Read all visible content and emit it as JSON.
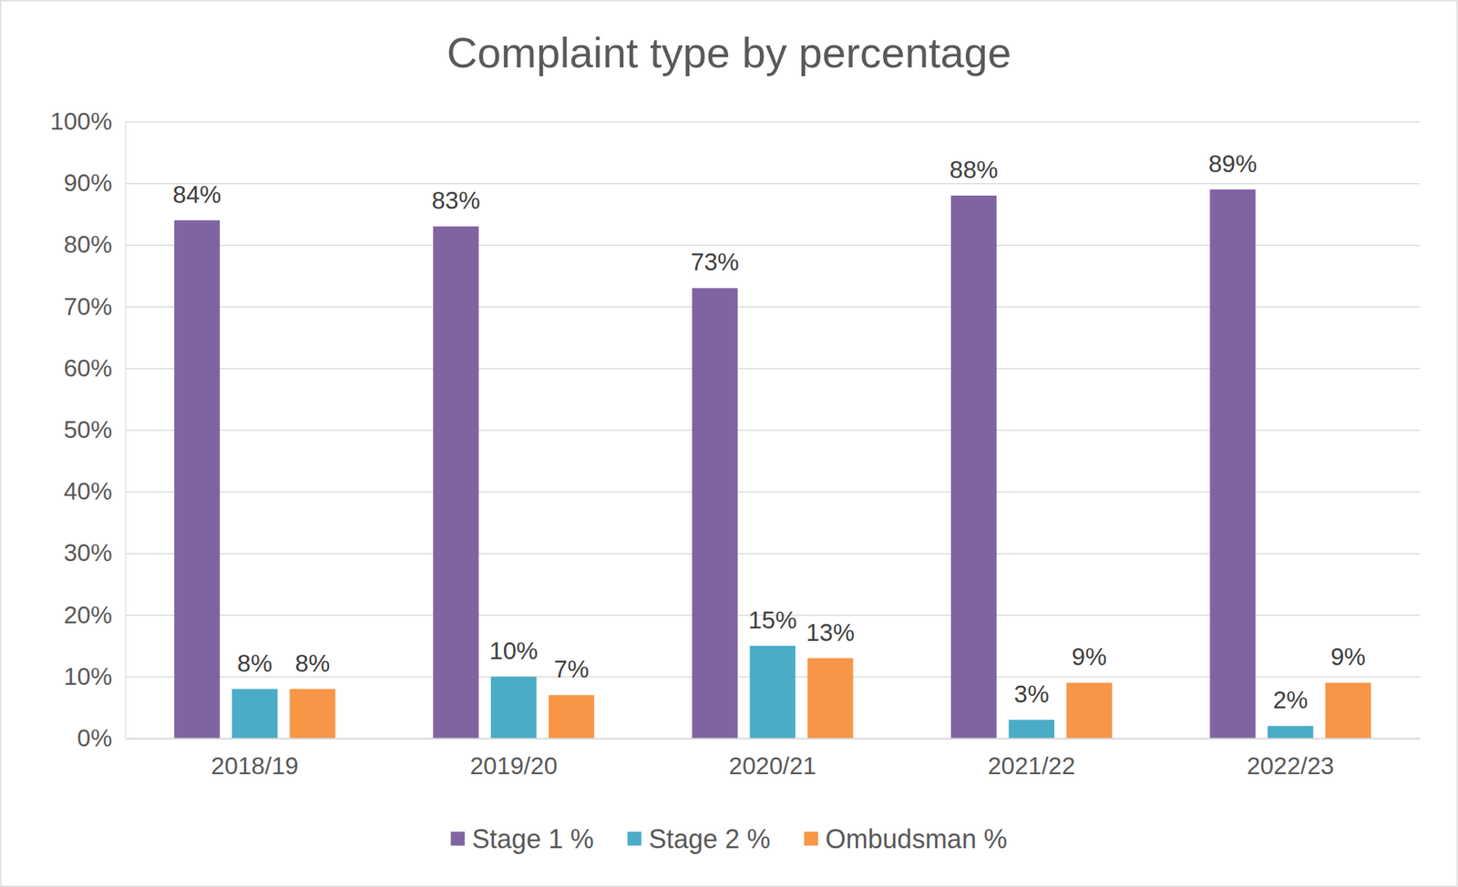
{
  "chart_data": {
    "type": "bar",
    "title": "Complaint type by percentage",
    "categories": [
      "2018/19",
      "2019/20",
      "2020/21",
      "2021/22",
      "2022/23"
    ],
    "series": [
      {
        "name": "Stage 1 %",
        "color": "#8064a2",
        "values": [
          84,
          83,
          73,
          88,
          89
        ],
        "value_labels": [
          "84%",
          "83%",
          "73%",
          "88%",
          "89%"
        ]
      },
      {
        "name": "Stage 2 %",
        "color": "#4bacc6",
        "values": [
          8,
          10,
          15,
          3,
          2
        ],
        "value_labels": [
          "8%",
          "10%",
          "15%",
          "3%",
          "2%"
        ]
      },
      {
        "name": "Ombudsman %",
        "color": "#f79646",
        "values": [
          8,
          7,
          13,
          9,
          9
        ],
        "value_labels": [
          "8%",
          "7%",
          "13%",
          "9%",
          "9%"
        ]
      }
    ],
    "ylim": [
      0,
      100
    ],
    "yticks": [
      {
        "value": 0,
        "label": "0%"
      },
      {
        "value": 10,
        "label": "10%"
      },
      {
        "value": 20,
        "label": "20%"
      },
      {
        "value": 30,
        "label": "30%"
      },
      {
        "value": 40,
        "label": "40%"
      },
      {
        "value": 50,
        "label": "50%"
      },
      {
        "value": 60,
        "label": "60%"
      },
      {
        "value": 70,
        "label": "70%"
      },
      {
        "value": 80,
        "label": "80%"
      },
      {
        "value": 90,
        "label": "90%"
      },
      {
        "value": 100,
        "label": "100%"
      }
    ],
    "grid": true,
    "data_labels": true,
    "legend": "bottom"
  }
}
